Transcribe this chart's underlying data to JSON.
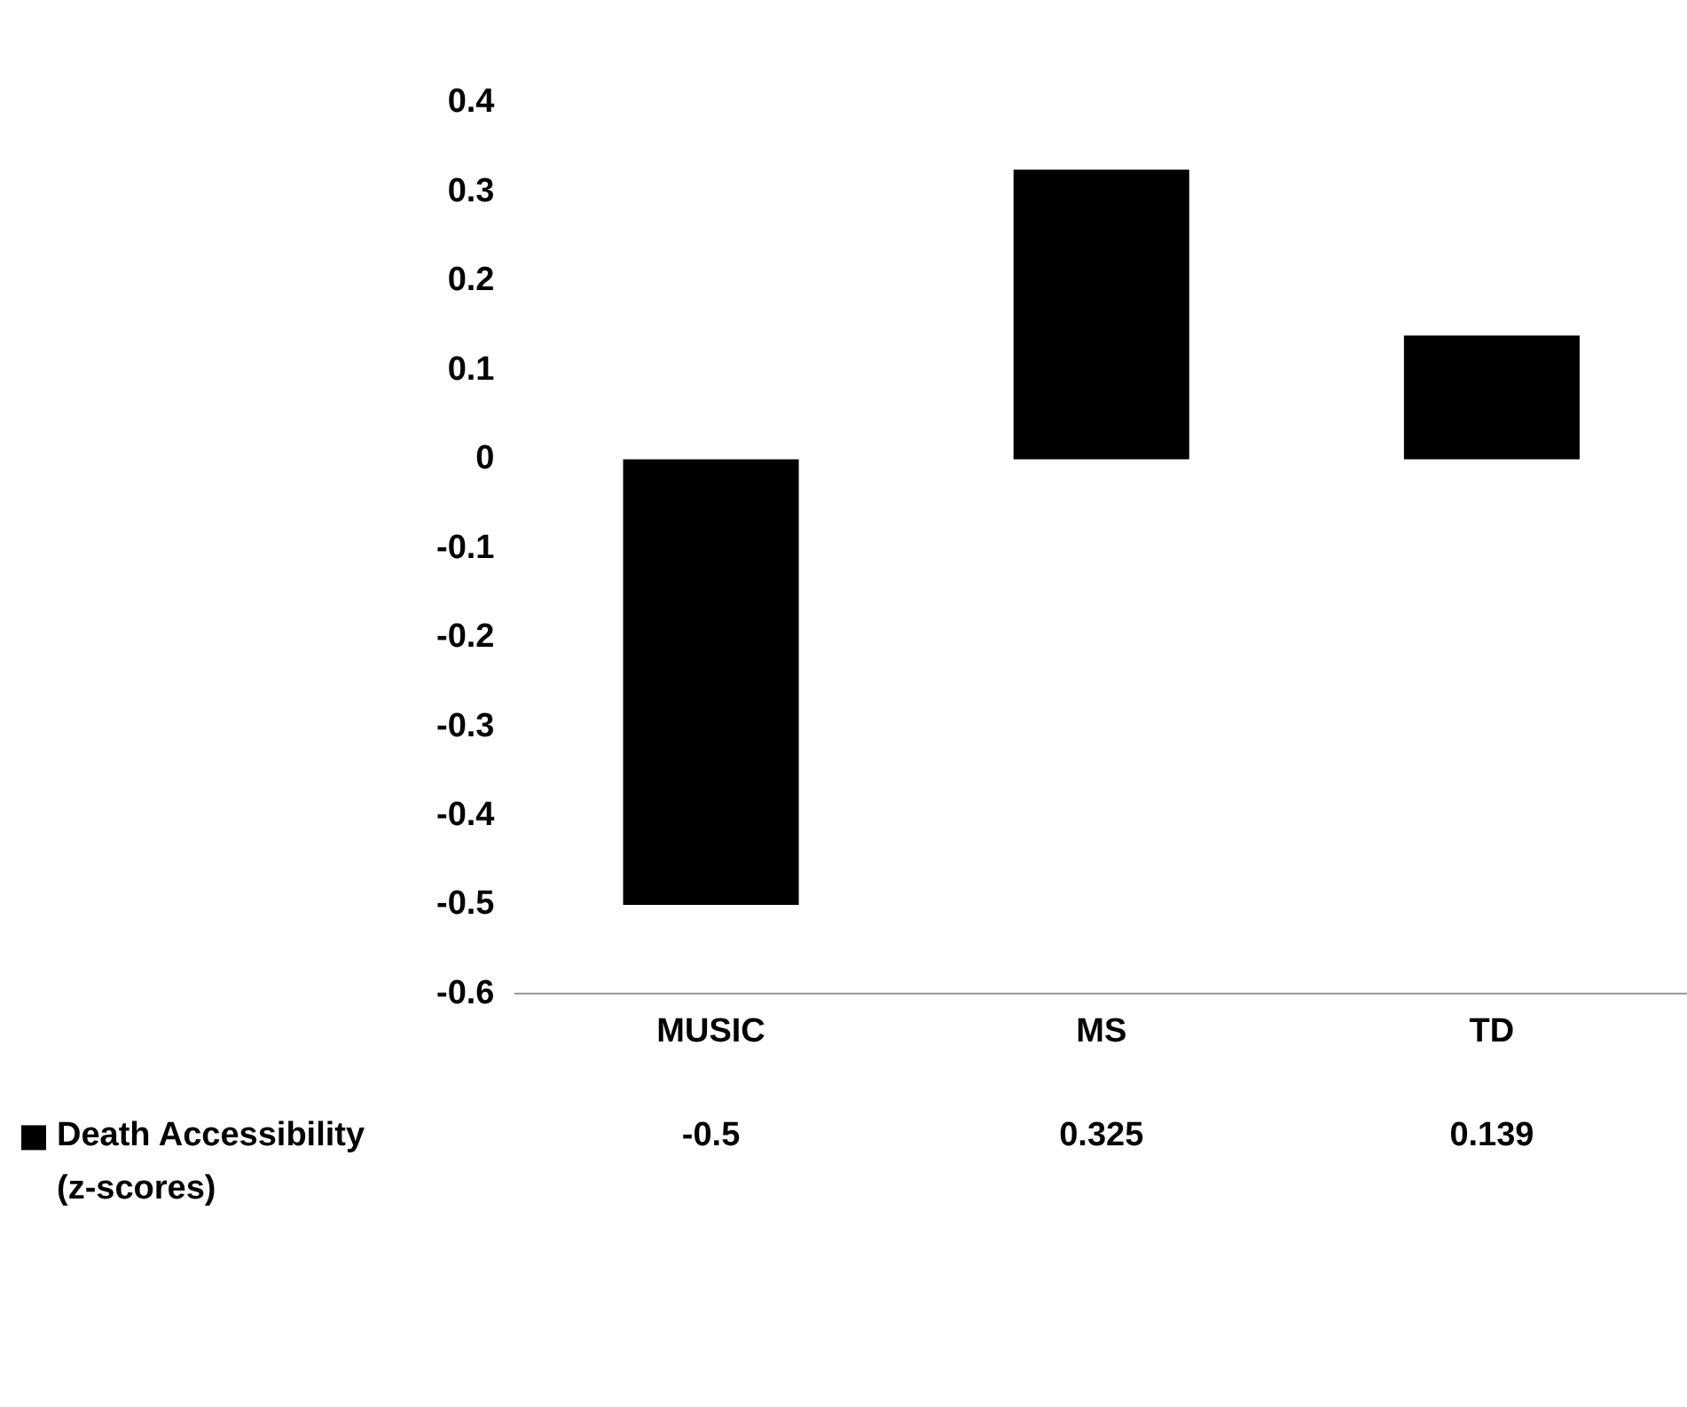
{
  "chart_data": {
    "type": "bar",
    "categories": [
      "MUSIC",
      "MS",
      "TD"
    ],
    "series": [
      {
        "name": "Death Accessibility (z-scores)",
        "color": "#000000",
        "values": [
          -0.5,
          0.325,
          0.139
        ]
      }
    ],
    "ylim": [
      -0.6,
      0.4
    ],
    "yticks": [
      -0.6,
      -0.5,
      -0.4,
      -0.3,
      -0.2,
      -0.1,
      0,
      0.1,
      0.2,
      0.3,
      0.4
    ],
    "grid": false,
    "legend": "bottom",
    "data_labels": true
  }
}
